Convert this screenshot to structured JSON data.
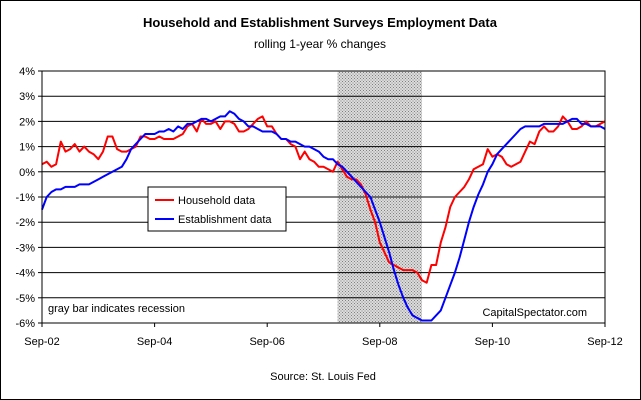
{
  "chart_data": {
    "type": "line",
    "title": "Household and Establishment Surveys Employment Data",
    "subtitle": "rolling 1-year % changes",
    "source": "Source: St. Louis Fed",
    "annotation": "gray bar indicates recession",
    "credit": "CapitalSpectator.com",
    "x_tick_labels": [
      "Sep-02",
      "Sep-04",
      "Sep-06",
      "Sep-08",
      "Sep-10",
      "Sep-12"
    ],
    "y_tick_labels": [
      "4%",
      "3%",
      "2%",
      "1%",
      "0%",
      "-1%",
      "-2%",
      "-3%",
      "-4%",
      "-5%",
      "-6%"
    ],
    "x_range": [
      "2002-09",
      "2012-09"
    ],
    "ylim": [
      -6,
      4
    ],
    "grid": "horizontal",
    "legend_position": "left-center",
    "recession": [
      "2007-12",
      "2009-06"
    ],
    "series": [
      {
        "name": "Household data",
        "color": "#ff0000",
        "points": [
          [
            "2002-09",
            0.3
          ],
          [
            "2002-10",
            0.4
          ],
          [
            "2002-11",
            0.2
          ],
          [
            "2002-12",
            0.3
          ],
          [
            "2003-01",
            1.2
          ],
          [
            "2003-02",
            0.8
          ],
          [
            "2003-03",
            0.9
          ],
          [
            "2003-04",
            1.1
          ],
          [
            "2003-05",
            0.8
          ],
          [
            "2003-06",
            1.0
          ],
          [
            "2003-07",
            0.8
          ],
          [
            "2003-08",
            0.7
          ],
          [
            "2003-09",
            0.5
          ],
          [
            "2003-10",
            0.8
          ],
          [
            "2003-11",
            1.4
          ],
          [
            "2003-12",
            1.4
          ],
          [
            "2004-01",
            0.9
          ],
          [
            "2004-02",
            0.8
          ],
          [
            "2004-03",
            0.8
          ],
          [
            "2004-04",
            0.9
          ],
          [
            "2004-05",
            1.0
          ],
          [
            "2004-06",
            1.4
          ],
          [
            "2004-07",
            1.4
          ],
          [
            "2004-08",
            1.3
          ],
          [
            "2004-09",
            1.3
          ],
          [
            "2004-10",
            1.4
          ],
          [
            "2004-11",
            1.3
          ],
          [
            "2004-12",
            1.3
          ],
          [
            "2005-01",
            1.3
          ],
          [
            "2005-02",
            1.4
          ],
          [
            "2005-03",
            1.5
          ],
          [
            "2005-04",
            1.8
          ],
          [
            "2005-05",
            1.9
          ],
          [
            "2005-06",
            1.6
          ],
          [
            "2005-07",
            2.1
          ],
          [
            "2005-08",
            1.9
          ],
          [
            "2005-09",
            1.9
          ],
          [
            "2005-10",
            2.0
          ],
          [
            "2005-11",
            1.7
          ],
          [
            "2005-12",
            2.0
          ],
          [
            "2006-01",
            2.0
          ],
          [
            "2006-02",
            1.9
          ],
          [
            "2006-03",
            1.6
          ],
          [
            "2006-04",
            1.6
          ],
          [
            "2006-05",
            1.7
          ],
          [
            "2006-06",
            1.9
          ],
          [
            "2006-07",
            2.1
          ],
          [
            "2006-08",
            2.2
          ],
          [
            "2006-09",
            1.8
          ],
          [
            "2006-10",
            1.8
          ],
          [
            "2006-11",
            1.5
          ],
          [
            "2006-12",
            1.3
          ],
          [
            "2007-01",
            1.3
          ],
          [
            "2007-02",
            1.1
          ],
          [
            "2007-03",
            1.0
          ],
          [
            "2007-04",
            0.5
          ],
          [
            "2007-05",
            0.8
          ],
          [
            "2007-06",
            0.5
          ],
          [
            "2007-07",
            0.4
          ],
          [
            "2007-08",
            0.2
          ],
          [
            "2007-09",
            0.2
          ],
          [
            "2007-10",
            0.1
          ],
          [
            "2007-11",
            0.0
          ],
          [
            "2007-12",
            0.4
          ],
          [
            "2008-01",
            0.1
          ],
          [
            "2008-02",
            -0.2
          ],
          [
            "2008-03",
            -0.3
          ],
          [
            "2008-04",
            -0.3
          ],
          [
            "2008-05",
            -0.5
          ],
          [
            "2008-06",
            -0.9
          ],
          [
            "2008-07",
            -1.5
          ],
          [
            "2008-08",
            -2.0
          ],
          [
            "2008-09",
            -2.8
          ],
          [
            "2008-10",
            -3.2
          ],
          [
            "2008-11",
            -3.6
          ],
          [
            "2008-12",
            -3.7
          ],
          [
            "2009-01",
            -3.8
          ],
          [
            "2009-02",
            -3.9
          ],
          [
            "2009-03",
            -3.9
          ],
          [
            "2009-04",
            -3.9
          ],
          [
            "2009-05",
            -4.0
          ],
          [
            "2009-06",
            -4.3
          ],
          [
            "2009-07",
            -4.4
          ],
          [
            "2009-08",
            -3.7
          ],
          [
            "2009-09",
            -3.7
          ],
          [
            "2009-10",
            -2.8
          ],
          [
            "2009-11",
            -2.2
          ],
          [
            "2009-12",
            -1.4
          ],
          [
            "2010-01",
            -1.0
          ],
          [
            "2010-02",
            -0.8
          ],
          [
            "2010-03",
            -0.6
          ],
          [
            "2010-04",
            -0.3
          ],
          [
            "2010-05",
            0.1
          ],
          [
            "2010-06",
            0.2
          ],
          [
            "2010-07",
            0.3
          ],
          [
            "2010-08",
            0.9
          ],
          [
            "2010-09",
            0.6
          ],
          [
            "2010-10",
            0.7
          ],
          [
            "2010-11",
            0.6
          ],
          [
            "2010-12",
            0.3
          ],
          [
            "2011-01",
            0.2
          ],
          [
            "2011-02",
            0.3
          ],
          [
            "2011-03",
            0.4
          ],
          [
            "2011-04",
            0.8
          ],
          [
            "2011-05",
            1.2
          ],
          [
            "2011-06",
            1.1
          ],
          [
            "2011-07",
            1.6
          ],
          [
            "2011-08",
            1.8
          ],
          [
            "2011-09",
            1.6
          ],
          [
            "2011-10",
            1.6
          ],
          [
            "2011-11",
            1.8
          ],
          [
            "2011-12",
            2.2
          ],
          [
            "2012-01",
            2.0
          ],
          [
            "2012-02",
            1.7
          ],
          [
            "2012-03",
            1.7
          ],
          [
            "2012-04",
            1.8
          ],
          [
            "2012-05",
            2.0
          ],
          [
            "2012-06",
            1.8
          ],
          [
            "2012-07",
            1.8
          ],
          [
            "2012-08",
            1.9
          ],
          [
            "2012-09",
            2.0
          ]
        ]
      },
      {
        "name": "Establishment data",
        "color": "#0000ff",
        "points": [
          [
            "2002-09",
            -1.5
          ],
          [
            "2002-10",
            -1.0
          ],
          [
            "2002-11",
            -0.8
          ],
          [
            "2002-12",
            -0.7
          ],
          [
            "2003-01",
            -0.7
          ],
          [
            "2003-02",
            -0.6
          ],
          [
            "2003-03",
            -0.6
          ],
          [
            "2003-04",
            -0.6
          ],
          [
            "2003-05",
            -0.5
          ],
          [
            "2003-06",
            -0.5
          ],
          [
            "2003-07",
            -0.5
          ],
          [
            "2003-08",
            -0.4
          ],
          [
            "2003-09",
            -0.3
          ],
          [
            "2003-10",
            -0.2
          ],
          [
            "2003-11",
            -0.1
          ],
          [
            "2003-12",
            0.0
          ],
          [
            "2004-01",
            0.1
          ],
          [
            "2004-02",
            0.2
          ],
          [
            "2004-03",
            0.5
          ],
          [
            "2004-04",
            0.9
          ],
          [
            "2004-05",
            1.1
          ],
          [
            "2004-06",
            1.3
          ],
          [
            "2004-07",
            1.5
          ],
          [
            "2004-08",
            1.5
          ],
          [
            "2004-09",
            1.5
          ],
          [
            "2004-10",
            1.6
          ],
          [
            "2004-11",
            1.6
          ],
          [
            "2004-12",
            1.7
          ],
          [
            "2005-01",
            1.6
          ],
          [
            "2005-02",
            1.8
          ],
          [
            "2005-03",
            1.7
          ],
          [
            "2005-04",
            1.9
          ],
          [
            "2005-05",
            1.9
          ],
          [
            "2005-06",
            2.0
          ],
          [
            "2005-07",
            2.1
          ],
          [
            "2005-08",
            2.1
          ],
          [
            "2005-09",
            2.0
          ],
          [
            "2005-10",
            2.1
          ],
          [
            "2005-11",
            2.2
          ],
          [
            "2005-12",
            2.2
          ],
          [
            "2006-01",
            2.4
          ],
          [
            "2006-02",
            2.3
          ],
          [
            "2006-03",
            2.1
          ],
          [
            "2006-04",
            2.0
          ],
          [
            "2006-05",
            1.8
          ],
          [
            "2006-06",
            1.8
          ],
          [
            "2006-07",
            1.7
          ],
          [
            "2006-08",
            1.6
          ],
          [
            "2006-09",
            1.6
          ],
          [
            "2006-10",
            1.6
          ],
          [
            "2006-11",
            1.5
          ],
          [
            "2006-12",
            1.3
          ],
          [
            "2007-01",
            1.3
          ],
          [
            "2007-02",
            1.2
          ],
          [
            "2007-03",
            1.2
          ],
          [
            "2007-04",
            1.1
          ],
          [
            "2007-05",
            1.0
          ],
          [
            "2007-06",
            1.0
          ],
          [
            "2007-07",
            0.9
          ],
          [
            "2007-08",
            0.8
          ],
          [
            "2007-09",
            0.6
          ],
          [
            "2007-10",
            0.5
          ],
          [
            "2007-11",
            0.5
          ],
          [
            "2007-12",
            0.3
          ],
          [
            "2008-01",
            0.2
          ],
          [
            "2008-02",
            0.0
          ],
          [
            "2008-03",
            -0.2
          ],
          [
            "2008-04",
            -0.4
          ],
          [
            "2008-05",
            -0.6
          ],
          [
            "2008-06",
            -0.8
          ],
          [
            "2008-07",
            -1.0
          ],
          [
            "2008-08",
            -1.5
          ],
          [
            "2008-09",
            -2.0
          ],
          [
            "2008-10",
            -2.6
          ],
          [
            "2008-11",
            -3.2
          ],
          [
            "2008-12",
            -3.9
          ],
          [
            "2009-01",
            -4.5
          ],
          [
            "2009-02",
            -5.0
          ],
          [
            "2009-03",
            -5.4
          ],
          [
            "2009-04",
            -5.7
          ],
          [
            "2009-05",
            -5.8
          ],
          [
            "2009-06",
            -5.9
          ],
          [
            "2009-07",
            -5.9
          ],
          [
            "2009-08",
            -5.9
          ],
          [
            "2009-09",
            -5.7
          ],
          [
            "2009-10",
            -5.5
          ],
          [
            "2009-11",
            -5.0
          ],
          [
            "2009-12",
            -4.5
          ],
          [
            "2010-01",
            -4.0
          ],
          [
            "2010-02",
            -3.4
          ],
          [
            "2010-03",
            -2.7
          ],
          [
            "2010-04",
            -2.0
          ],
          [
            "2010-05",
            -1.4
          ],
          [
            "2010-06",
            -0.9
          ],
          [
            "2010-07",
            -0.5
          ],
          [
            "2010-08",
            0.0
          ],
          [
            "2010-09",
            0.3
          ],
          [
            "2010-10",
            0.7
          ],
          [
            "2010-11",
            0.9
          ],
          [
            "2010-12",
            1.1
          ],
          [
            "2011-01",
            1.3
          ],
          [
            "2011-02",
            1.5
          ],
          [
            "2011-03",
            1.7
          ],
          [
            "2011-04",
            1.8
          ],
          [
            "2011-05",
            1.8
          ],
          [
            "2011-06",
            1.8
          ],
          [
            "2011-07",
            1.8
          ],
          [
            "2011-08",
            1.9
          ],
          [
            "2011-09",
            1.9
          ],
          [
            "2011-10",
            1.9
          ],
          [
            "2011-11",
            1.9
          ],
          [
            "2011-12",
            1.9
          ],
          [
            "2012-01",
            2.0
          ],
          [
            "2012-02",
            2.1
          ],
          [
            "2012-03",
            2.1
          ],
          [
            "2012-04",
            1.9
          ],
          [
            "2012-05",
            1.9
          ],
          [
            "2012-06",
            1.8
          ],
          [
            "2012-07",
            1.8
          ],
          [
            "2012-08",
            1.8
          ],
          [
            "2012-09",
            1.7
          ]
        ]
      }
    ]
  }
}
